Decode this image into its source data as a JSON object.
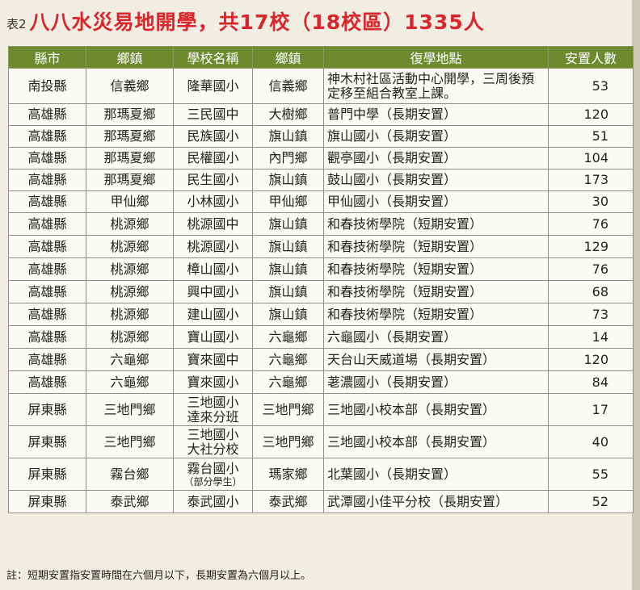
{
  "header": {
    "prefix": "表2",
    "title": "八八水災易地開學，共17校（18校區）1335人"
  },
  "table": {
    "columns": [
      "縣市",
      "鄉鎮",
      "學校名稱",
      "鄉鎮",
      "復學地點",
      "安置人數"
    ],
    "rows": [
      {
        "county": "南投縣",
        "township": "信義鄉",
        "school": "隆華國小",
        "dest_township": "信義鄉",
        "location": "神木村社區活動中心開學，三周後預定移至組合教室上課。",
        "count": "53"
      },
      {
        "county": "高雄縣",
        "township": "那瑪夏鄉",
        "school": "三民國中",
        "dest_township": "大樹鄉",
        "location": "普門中學（長期安置）",
        "count": "120"
      },
      {
        "county": "高雄縣",
        "township": "那瑪夏鄉",
        "school": "民族國小",
        "dest_township": "旗山鎮",
        "location": "旗山國小（長期安置）",
        "count": "51"
      },
      {
        "county": "高雄縣",
        "township": "那瑪夏鄉",
        "school": "民權國小",
        "dest_township": "內門鄉",
        "location": "觀亭國小（長期安置）",
        "count": "104"
      },
      {
        "county": "高雄縣",
        "township": "那瑪夏鄉",
        "school": "民生國小",
        "dest_township": "旗山鎮",
        "location": "鼓山國小（長期安置）",
        "count": "173"
      },
      {
        "county": "高雄縣",
        "township": "甲仙鄉",
        "school": "小林國小",
        "dest_township": "甲仙鄉",
        "location": "甲仙國小（長期安置）",
        "count": "30"
      },
      {
        "county": "高雄縣",
        "township": "桃源鄉",
        "school": "桃源國中",
        "dest_township": "旗山鎮",
        "location": "和春技術學院（短期安置）",
        "count": "76"
      },
      {
        "county": "高雄縣",
        "township": "桃源鄉",
        "school": "桃源國小",
        "dest_township": "旗山鎮",
        "location": "和春技術學院（短期安置）",
        "count": "129"
      },
      {
        "county": "高雄縣",
        "township": "桃源鄉",
        "school": "樟山國小",
        "dest_township": "旗山鎮",
        "location": "和春技術學院（短期安置）",
        "count": "76"
      },
      {
        "county": "高雄縣",
        "township": "桃源鄉",
        "school": "興中國小",
        "dest_township": "旗山鎮",
        "location": "和春技術學院（短期安置）",
        "count": "68"
      },
      {
        "county": "高雄縣",
        "township": "桃源鄉",
        "school": "建山國小",
        "dest_township": "旗山鎮",
        "location": "和春技術學院（短期安置）",
        "count": "73"
      },
      {
        "county": "高雄縣",
        "township": "桃源鄉",
        "school": "寶山國小",
        "dest_township": "六龜鄉",
        "location": "六龜國小（長期安置）",
        "count": "14"
      },
      {
        "county": "高雄縣",
        "township": "六龜鄉",
        "school": "寶來國中",
        "dest_township": "六龜鄉",
        "location": "天台山天威道場（長期安置）",
        "count": "120"
      },
      {
        "county": "高雄縣",
        "township": "六龜鄉",
        "school": "寶來國小",
        "dest_township": "六龜鄉",
        "location": "荖濃國小（長期安置）",
        "count": "84"
      },
      {
        "county": "屏東縣",
        "township": "三地門鄉",
        "school": "三地國小",
        "school_line2": "達來分班",
        "dest_township": "三地門鄉",
        "location": "三地國小校本部（長期安置）",
        "count": "17"
      },
      {
        "county": "屏東縣",
        "township": "三地門鄉",
        "school": "三地國小",
        "school_line2": "大社分校",
        "dest_township": "三地門鄉",
        "location": "三地國小校本部（長期安置）",
        "count": "40"
      },
      {
        "county": "屏東縣",
        "township": "霧台鄉",
        "school": "霧台國小",
        "school_note": "（部分學生）",
        "dest_township": "瑪家鄉",
        "location": "北葉國小（長期安置）",
        "count": "55"
      },
      {
        "county": "屏東縣",
        "township": "泰武鄉",
        "school": "泰武國小",
        "dest_township": "泰武鄉",
        "location": "武潭國小佳平分校（長期安置）",
        "count": "52"
      }
    ]
  },
  "note": "註：短期安置指安置時間在六個月以下，長期安置為六個月以上。",
  "colors": {
    "title": "#d9262c",
    "header_bg": "#6f8a2e",
    "page_bg": "#f1ede2"
  }
}
